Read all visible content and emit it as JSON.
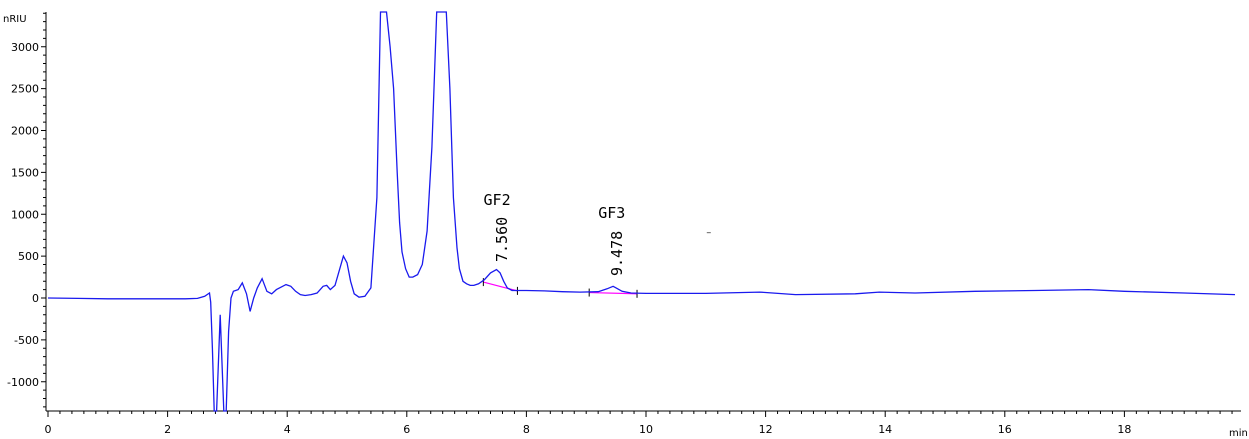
{
  "chart_data": {
    "type": "line",
    "title": "",
    "xlabel": "min",
    "ylabel": "nRIU",
    "xlim": [
      0,
      20
    ],
    "ylim": [
      -1350,
      3450
    ],
    "x_ticks": [
      0,
      2,
      4,
      6,
      8,
      10,
      12,
      14,
      16,
      18
    ],
    "y_ticks": [
      -1000,
      -500,
      0,
      500,
      1000,
      1500,
      2000,
      2500,
      3000
    ],
    "grid": false,
    "legend": "none",
    "colors": {
      "trace": "#1a1aee",
      "baseline": "#ff00ff",
      "axis": "#000000"
    },
    "series": [
      {
        "x": [
          0,
          0.5,
          1.0,
          1.5,
          2.0,
          2.3,
          2.5,
          2.62,
          2.7,
          2.72,
          2.75,
          2.78,
          2.82,
          2.88,
          2.94,
          2.98,
          3.02,
          3.06,
          3.1,
          3.18,
          3.25,
          3.32,
          3.38,
          3.44,
          3.5,
          3.58,
          3.66,
          3.74,
          3.82,
          3.9,
          3.98,
          4.06,
          4.14,
          4.22,
          4.3,
          4.4,
          4.5,
          4.6,
          4.66,
          4.72,
          4.8,
          4.88,
          4.94,
          5.0,
          5.06,
          5.12,
          5.2,
          5.3,
          5.4,
          5.5,
          5.56,
          5.62,
          5.66,
          5.72,
          5.78,
          5.84,
          5.88,
          5.92,
          5.98,
          6.04,
          6.1,
          6.18,
          6.26,
          6.34,
          6.42,
          6.5,
          6.56,
          6.62,
          6.66,
          6.72,
          6.78,
          6.84,
          6.88,
          6.94,
          7.0,
          7.06,
          7.12,
          7.2,
          7.3,
          7.4,
          7.5,
          7.56,
          7.62,
          7.68,
          7.76,
          7.85,
          8.0,
          8.3,
          8.6,
          8.9,
          9.2,
          9.35,
          9.45,
          9.5,
          9.6,
          9.75,
          10.0,
          11.0,
          11.9,
          12.5,
          13.5,
          13.9,
          14.5,
          15.5,
          16.5,
          17.4,
          18.0,
          19.0,
          19.85
        ],
        "values": [
          0,
          -5,
          -10,
          -10,
          -10,
          -10,
          -5,
          20,
          60,
          -50,
          -600,
          -1350,
          -1350,
          -200,
          -1350,
          -1350,
          -400,
          0,
          80,
          100,
          180,
          50,
          -160,
          0,
          120,
          230,
          80,
          50,
          100,
          130,
          160,
          140,
          80,
          40,
          30,
          40,
          60,
          140,
          150,
          100,
          150,
          350,
          500,
          420,
          200,
          50,
          10,
          20,
          120,
          1200,
          3450,
          3450,
          3450,
          3000,
          2500,
          1500,
          900,
          550,
          350,
          250,
          250,
          280,
          400,
          800,
          1800,
          3450,
          3450,
          3450,
          3450,
          2500,
          1200,
          600,
          350,
          200,
          170,
          150,
          150,
          170,
          220,
          300,
          340,
          300,
          200,
          120,
          90,
          90,
          90,
          85,
          75,
          70,
          75,
          110,
          140,
          120,
          80,
          60,
          55,
          55,
          70,
          40,
          50,
          70,
          60,
          80,
          90,
          100,
          80,
          60,
          40
        ]
      }
    ],
    "peaks": [
      {
        "name": "GF2",
        "rt": "7.560",
        "x": 7.56,
        "baseline": [
          [
            7.28,
            190
          ],
          [
            7.85,
            85
          ]
        ]
      },
      {
        "name": "GF3",
        "rt": "9.478",
        "x": 9.478,
        "baseline": [
          [
            9.05,
            65
          ],
          [
            9.85,
            50
          ]
        ]
      }
    ],
    "dash_mark": {
      "x": 11.05,
      "y": 780
    }
  }
}
